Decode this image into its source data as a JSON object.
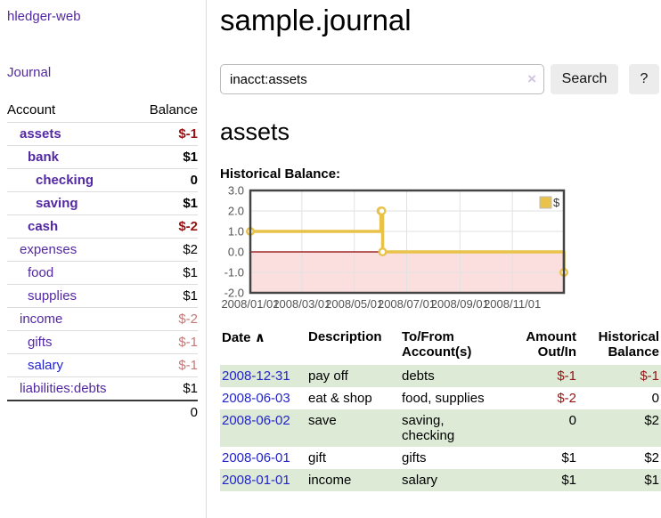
{
  "sidebar": {
    "app_title": "hledger-web",
    "journal_link": "Journal",
    "accounts_table": {
      "headers": {
        "account": "Account",
        "balance": "Balance"
      },
      "rows": [
        {
          "name": "assets",
          "balance": "$-1"
        },
        {
          "name": "bank",
          "balance": "$1"
        },
        {
          "name": "checking",
          "balance": "0"
        },
        {
          "name": "saving",
          "balance": "$1"
        },
        {
          "name": "cash",
          "balance": "$-2"
        },
        {
          "name": "expenses",
          "balance": "$2"
        },
        {
          "name": "food",
          "balance": "$1"
        },
        {
          "name": "supplies",
          "balance": "$1"
        },
        {
          "name": "income",
          "balance": "$-2"
        },
        {
          "name": "gifts",
          "balance": "$-1"
        },
        {
          "name": "salary",
          "balance": "$-1"
        },
        {
          "name": "liabilities:debts",
          "balance": "$1"
        }
      ],
      "total": "0"
    }
  },
  "main": {
    "title": "sample.journal",
    "search": {
      "value": "inacct:assets",
      "clear_icon": "×",
      "search_button": "Search",
      "help_button": "?"
    },
    "account_heading": "assets",
    "chart_label": "Historical Balance:",
    "register": {
      "headers": {
        "date": "Date",
        "sort_icon": "∧",
        "description": "Description",
        "account": "To/From\nAccount(s)",
        "amount": "Amount\nOut/In",
        "balance": "Historical\nBalance"
      },
      "rows": [
        {
          "date": "2008-12-31",
          "description": "pay off",
          "account": "debts",
          "amount": "$-1",
          "balance": "$-1"
        },
        {
          "date": "2008-06-03",
          "description": "eat & shop",
          "account": "food, supplies",
          "amount": "$-2",
          "balance": "0"
        },
        {
          "date": "2008-06-02",
          "description": "save",
          "account": "saving,\nchecking",
          "amount": "0",
          "balance": "$2"
        },
        {
          "date": "2008-06-01",
          "description": "gift",
          "account": "gifts",
          "amount": "$1",
          "balance": "$2"
        },
        {
          "date": "2008-01-01",
          "description": "income",
          "account": "salary",
          "amount": "$1",
          "balance": "$1"
        }
      ]
    }
  },
  "chart_data": {
    "type": "line",
    "title": "Historical Balance",
    "step": true,
    "series": [
      {
        "name": "$",
        "color": "#E9C24A",
        "points": [
          [
            "2008-01-01",
            1
          ],
          [
            "2008-06-01",
            2
          ],
          [
            "2008-06-02",
            2
          ],
          [
            "2008-06-03",
            0
          ],
          [
            "2008-12-31",
            -1
          ]
        ]
      }
    ],
    "point_days": [
      0,
      152,
      153,
      154,
      365
    ],
    "ylim": [
      -2,
      3
    ],
    "yticks": [
      3,
      2,
      1,
      0,
      -1,
      -2
    ],
    "xticks": [
      "2008/01/01",
      "2008/03/01",
      "2008/05/01",
      "2008/07/01",
      "2008/09/01",
      "2008/11/01"
    ],
    "xtick_days": [
      0,
      60,
      121,
      182,
      244,
      305
    ],
    "x_range_days": [
      0,
      365
    ],
    "grid": true,
    "legend_position": "top-right",
    "negative_region_fill": "#fbdfdf",
    "zero_line_color": "#8b0000",
    "axis_label_color": "#545454",
    "border_color": "#444444"
  },
  "colors": {
    "link_purple": "#5329a3",
    "link_blue": "#2323cc",
    "negative_strong": "#941414",
    "negative_muted": "#c47979",
    "row_green": "#dcead6"
  }
}
